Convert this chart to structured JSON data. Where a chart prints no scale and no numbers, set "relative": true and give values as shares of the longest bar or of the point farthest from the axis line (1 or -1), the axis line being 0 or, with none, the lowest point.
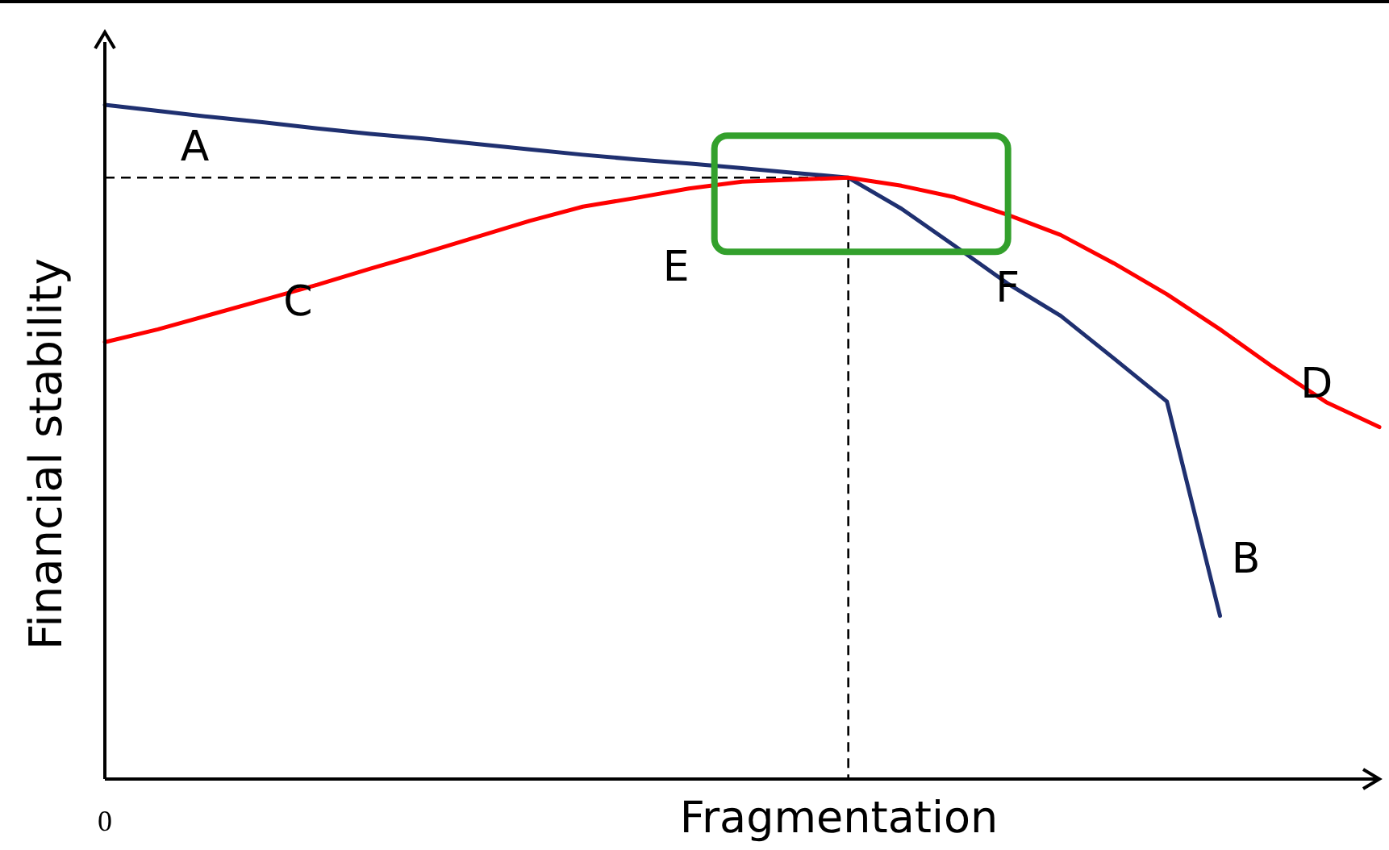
{
  "chart_data": {
    "type": "line",
    "relative": true,
    "xlabel": "Fragmentation",
    "ylabel": "Financial stability",
    "categories": [
      null,
      null,
      null,
      null,
      null,
      null,
      null,
      null,
      null,
      null,
      null,
      null,
      null,
      null,
      null,
      null,
      null,
      null,
      null,
      null,
      null,
      null,
      null,
      null,
      null
    ],
    "series": [
      {
        "color": "#1f3070",
        "values": [
          1.0,
          0.991,
          0.982,
          0.974,
          0.965,
          0.957,
          0.95,
          0.942,
          0.934,
          0.926,
          0.919,
          0.913,
          0.906,
          0.899,
          0.892,
          0.846,
          0.791,
          0.735,
          0.687,
          0.624,
          0.56,
          0.242,
          null,
          null,
          null
        ]
      },
      {
        "color": "#ff0000",
        "values": [
          0.648,
          0.667,
          0.689,
          0.711,
          0.733,
          0.757,
          0.78,
          0.804,
          0.828,
          0.849,
          0.862,
          0.876,
          0.886,
          0.889,
          0.892,
          0.88,
          0.863,
          0.837,
          0.807,
          0.765,
          0.719,
          0.667,
          0.611,
          0.559,
          0.522
        ]
      }
    ],
    "ref_lines": [
      {
        "axis": "y",
        "value": 0.892,
        "line_style": "dashed",
        "color": "#000000"
      }
    ],
    "annotations": [
      "0",
      "A",
      "B",
      "C",
      "D",
      "E",
      "F"
    ],
    "line_style": "solid"
  }
}
